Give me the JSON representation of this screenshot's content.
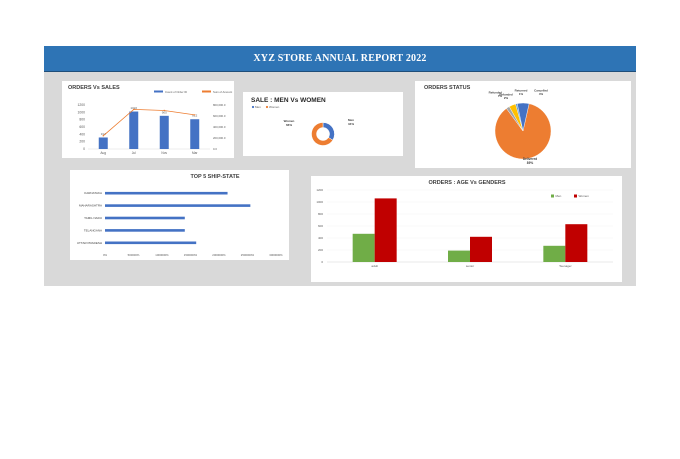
{
  "report": {
    "title": "XYZ STORE ANNUAL REPORT 2022"
  },
  "colors": {
    "banner": "#2e74b5",
    "bar_blue": "#4472c4",
    "line_orange": "#ed7d31",
    "men_green": "#70ad47",
    "women_red": "#c00000"
  },
  "chart_data": [
    {
      "id": "orders_vs_sales",
      "type": "bar",
      "title": "ORDERS Vs SALES",
      "categories": [
        "Aug",
        "Jul",
        "Nov",
        "Mar"
      ],
      "series": [
        {
          "name": "Count of Order ID",
          "axis": "left",
          "kind": "bar",
          "values": [
            314,
            1022,
            905,
            812
          ]
        },
        {
          "name": "Sum of Amount",
          "axis": "right",
          "kind": "line",
          "values": [
            240000,
            720000,
            700000,
            620000
          ]
        }
      ],
      "yticks_left": [
        "1200",
        "1000",
        "800",
        "600",
        "400",
        "200",
        "0"
      ],
      "ylim_left": [
        0,
        1200
      ],
      "yticks_right": [
        "800,000.0",
        "600,000.0",
        "400,000.0",
        "200,000.0",
        "0.0"
      ],
      "ylim_right": [
        0,
        800000
      ],
      "legend": "top"
    },
    {
      "id": "sale_men_women",
      "type": "pie",
      "title": "SALE : MEN Vs WOMEN",
      "donut": true,
      "slices": [
        {
          "label": "Men",
          "value": 34,
          "pct": "34%",
          "color": "#4472c4"
        },
        {
          "label": "Women",
          "value": 66,
          "pct": "66%",
          "color": "#ed7d31"
        }
      ],
      "legend": "top-left"
    },
    {
      "id": "orders_status",
      "type": "pie",
      "title": "ORDERS STATUS",
      "slices": [
        {
          "label": "Delivered",
          "value": 89,
          "pct": "89%",
          "color": "#ed7d31"
        },
        {
          "label": "Refunded",
          "value": 2,
          "pct": "2%",
          "color": "#a5a5a5"
        },
        {
          "label": "Cancelled",
          "value": 4,
          "pct": "4%",
          "color": "#ffc000"
        },
        {
          "label": "Returned",
          "value": 1,
          "pct": "1%",
          "color": "#5b9bd5"
        },
        {
          "label": "Refunded",
          "value": 7,
          "pct": "7%",
          "color": "#4472c4"
        }
      ]
    },
    {
      "id": "top5_ship_state",
      "type": "bar",
      "orientation": "horizontal",
      "title": "TOP 5 SHIP-STATE",
      "categories": [
        "KARNATAKA",
        "MAHARASHTRA",
        "TAMIL NADU",
        "TELANGANA",
        "UTTAR PRADESH"
      ],
      "values": [
        21.5,
        25.5,
        14.0,
        14.0,
        16.0
      ],
      "xticks": [
        "0%",
        "500000%",
        "1000000%",
        "1500000%",
        "2000000%",
        "2500000%",
        "3000000%"
      ],
      "xlim": [
        0,
        30
      ]
    },
    {
      "id": "age_vs_gender",
      "type": "bar",
      "title": "ORDERS : AGE Vs GENDERS",
      "categories": [
        "adult",
        "senior",
        "Teenager"
      ],
      "series": [
        {
          "name": "Men",
          "color": "#70ad47",
          "values": [
            470,
            190,
            270
          ]
        },
        {
          "name": "Women",
          "color": "#c00000",
          "values": [
            1060,
            420,
            630
          ]
        }
      ],
      "yticks": [
        "1200",
        "1000",
        "800",
        "600",
        "400",
        "200",
        "0"
      ],
      "ylim": [
        0,
        1200
      ],
      "legend": "top-right"
    }
  ]
}
